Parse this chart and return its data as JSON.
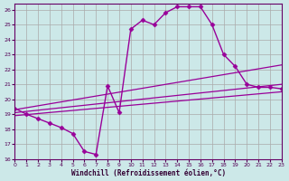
{
  "xlabel": "Windchill (Refroidissement éolien,°C)",
  "background_color": "#cce8e8",
  "line_color": "#990099",
  "grid_color": "#aaaaaa",
  "xlim": [
    0,
    23
  ],
  "ylim": [
    16,
    26.4
  ],
  "xticks": [
    0,
    1,
    2,
    3,
    4,
    5,
    6,
    7,
    8,
    9,
    10,
    11,
    12,
    13,
    14,
    15,
    16,
    17,
    18,
    19,
    20,
    21,
    22,
    23
  ],
  "yticks": [
    16,
    17,
    18,
    19,
    20,
    21,
    22,
    23,
    24,
    25,
    26
  ],
  "series": [
    {
      "x": [
        0,
        1,
        2,
        3,
        4,
        5,
        6,
        7,
        8,
        9,
        10,
        11,
        12,
        13,
        14,
        15,
        16,
        17,
        18,
        19,
        20,
        21,
        22,
        23
      ],
      "y": [
        19.4,
        19.0,
        18.7,
        18.4,
        18.1,
        17.7,
        16.5,
        16.3,
        20.9,
        19.1,
        24.7,
        25.3,
        25.0,
        25.8,
        26.2,
        26.2,
        26.2,
        25.0,
        23.0,
        22.2,
        21.0,
        20.8,
        20.8,
        20.7
      ],
      "marker": "D",
      "markersize": 2.5,
      "linewidth": 1.0
    },
    {
      "x": [
        0,
        23
      ],
      "y": [
        19.3,
        22.3
      ],
      "marker": null,
      "linewidth": 0.9
    },
    {
      "x": [
        0,
        23
      ],
      "y": [
        19.1,
        21.0
      ],
      "marker": null,
      "linewidth": 0.9
    },
    {
      "x": [
        0,
        23
      ],
      "y": [
        18.9,
        20.5
      ],
      "marker": null,
      "linewidth": 0.9
    }
  ]
}
